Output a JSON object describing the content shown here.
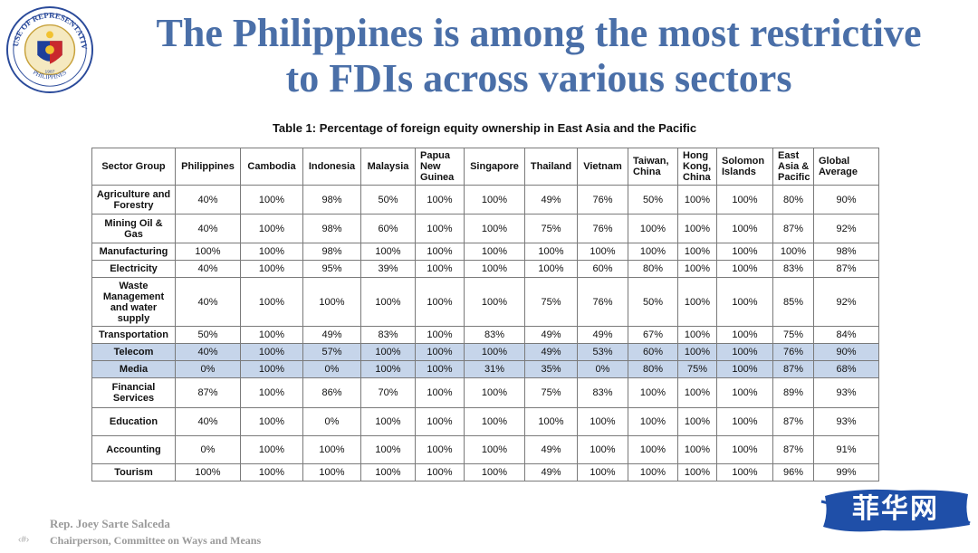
{
  "seal": {
    "top_text": "HOUSE OF REPRESENTATIVES",
    "bottom_text": "PHILIPPINES",
    "year": "1987"
  },
  "title_line1": "The Philippines is among the most restrictive",
  "title_line2": "to FDIs across various sectors",
  "table": {
    "caption": "Table 1: Percentage of foreign equity ownership in East Asia and the Pacific",
    "headers": [
      "Sector Group",
      "Philippines",
      "Cambodia",
      "Indonesia",
      "Malaysia",
      "Papua New Guinea",
      "Singapore",
      "Thailand",
      "Vietnam",
      "Taiwan, China",
      "Hong Kong, China",
      "Solomon Islands",
      "East Asia & Pacific",
      "Global Average"
    ],
    "rows": [
      {
        "cells": [
          "Agriculture and Forestry",
          "40%",
          "100%",
          "98%",
          "50%",
          "100%",
          "100%",
          "49%",
          "76%",
          "50%",
          "100%",
          "100%",
          "80%",
          "90%"
        ],
        "highlight": false
      },
      {
        "cells": [
          "Mining Oil & Gas",
          "40%",
          "100%",
          "98%",
          "60%",
          "100%",
          "100%",
          "75%",
          "76%",
          "100%",
          "100%",
          "100%",
          "87%",
          "92%"
        ],
        "highlight": false
      },
      {
        "cells": [
          "Manufacturing",
          "100%",
          "100%",
          "98%",
          "100%",
          "100%",
          "100%",
          "100%",
          "100%",
          "100%",
          "100%",
          "100%",
          "100%",
          "98%"
        ],
        "highlight": false
      },
      {
        "cells": [
          "Electricity",
          "40%",
          "100%",
          "95%",
          "39%",
          "100%",
          "100%",
          "100%",
          "60%",
          "80%",
          "100%",
          "100%",
          "83%",
          "87%"
        ],
        "highlight": false
      },
      {
        "cells": [
          "Waste Management and water supply",
          "40%",
          "100%",
          "100%",
          "100%",
          "100%",
          "100%",
          "75%",
          "76%",
          "50%",
          "100%",
          "100%",
          "85%",
          "92%"
        ],
        "highlight": false
      },
      {
        "cells": [
          "Transportation",
          "50%",
          "100%",
          "49%",
          "83%",
          "100%",
          "83%",
          "49%",
          "49%",
          "67%",
          "100%",
          "100%",
          "75%",
          "84%"
        ],
        "highlight": false
      },
      {
        "cells": [
          "Telecom",
          "40%",
          "100%",
          "57%",
          "100%",
          "100%",
          "100%",
          "49%",
          "53%",
          "60%",
          "100%",
          "100%",
          "76%",
          "90%"
        ],
        "highlight": true
      },
      {
        "cells": [
          "Media",
          "0%",
          "100%",
          "0%",
          "100%",
          "100%",
          "31%",
          "35%",
          "0%",
          "80%",
          "75%",
          "100%",
          "87%",
          "68%"
        ],
        "highlight": true
      },
      {
        "cells": [
          "Financial Services",
          "87%",
          "100%",
          "86%",
          "70%",
          "100%",
          "100%",
          "75%",
          "83%",
          "100%",
          "100%",
          "100%",
          "89%",
          "93%"
        ],
        "highlight": false
      },
      {
        "cells": [
          "Education",
          "40%",
          "100%",
          "0%",
          "100%",
          "100%",
          "100%",
          "100%",
          "100%",
          "100%",
          "100%",
          "100%",
          "87%",
          "93%"
        ],
        "highlight": false
      },
      {
        "cells": [
          "Accounting",
          "0%",
          "100%",
          "100%",
          "100%",
          "100%",
          "100%",
          "49%",
          "100%",
          "100%",
          "100%",
          "100%",
          "87%",
          "91%"
        ],
        "highlight": false
      },
      {
        "cells": [
          "Tourism",
          "100%",
          "100%",
          "100%",
          "100%",
          "100%",
          "100%",
          "49%",
          "100%",
          "100%",
          "100%",
          "100%",
          "96%",
          "99%"
        ],
        "highlight": false
      }
    ],
    "highlight_color": "#c6d5ea"
  },
  "footer": {
    "name": "Rep. Joey Sarte Salceda",
    "role": "Chairperson, Committee on Ways and Means",
    "page_marker": "‹#›"
  },
  "brand": {
    "label": "菲华网",
    "color": "#1f4fa8"
  },
  "colors": {
    "title": "#4a6fa8",
    "footer_text": "#9a9a9a"
  }
}
